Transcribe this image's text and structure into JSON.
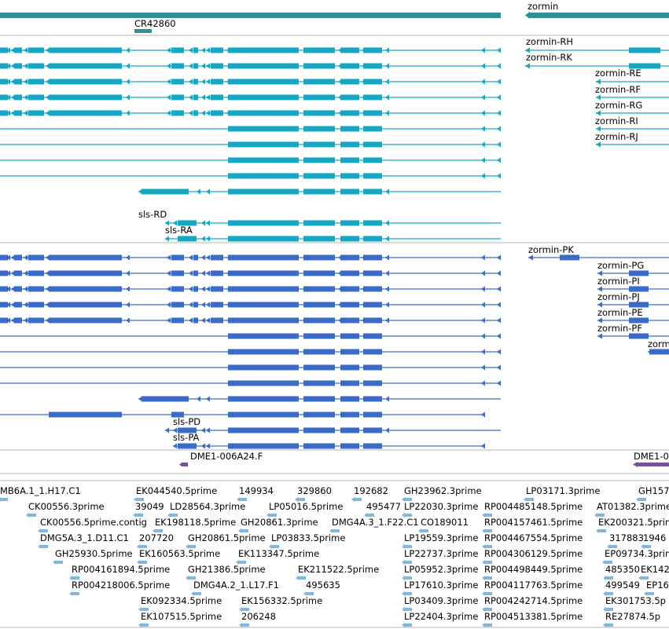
{
  "colors": {
    "gene": "#2f8f95",
    "rna": "#14a8c4",
    "protein": "#3a6bc9",
    "clone": "#7a4ea8",
    "est": "#7fb8dc",
    "divider": "#b4b4b4"
  },
  "gene_track": {
    "genes": [
      {
        "label": "CR42860"
      },
      {
        "label": "zormin"
      }
    ]
  },
  "transcript_track": {
    "labels": [
      "zormin-RH",
      "zormin-RK",
      "zormin-RE",
      "zormin-RF",
      "zormin-RG",
      "zormin-RI",
      "zormin-RJ",
      "sls-RD",
      "sls-RA"
    ]
  },
  "protein_track": {
    "labels": [
      "zormin-PK",
      "zormin-PG",
      "zormin-PI",
      "zormin-PJ",
      "zormin-PE",
      "zormin-PF",
      "zorm",
      "sls-PD",
      "sls-PA"
    ]
  },
  "clone_track": {
    "labels": [
      "DME1-006A24.F",
      "DME1-0"
    ]
  },
  "est_track": {
    "labels": [
      "MB6A.1_1.H17.C1",
      "EK044540.5prime",
      "149934",
      "329860",
      "192682",
      "GH23962.3prime",
      "LP03171.3prime",
      "GH157",
      "CK00556.3prime",
      "39049",
      "LD28564.3prime",
      "LP05016.5prime",
      "495477",
      "LP22030.3prime",
      "RP004485148.5prime",
      "AT01382.3prime",
      "CK00556.5prime.contig",
      "EK198118.5prime",
      "GH20861.3prime",
      "DMG4A.3_1.F22.C1",
      "CO189011",
      "RP004157461.5prime",
      "EK200321.5prime",
      "DMG5A.3_1.D11.C1",
      "207720",
      "GH20861.5prime",
      "LP03833.5prime",
      "LP19559.3prime",
      "RP004467554.5prime",
      "317883",
      "1946",
      "GH25930.5prime",
      "EK160563.5prime",
      "EK113347.5prime",
      "LP22737.3prime",
      "RP004306129.5prime",
      "EP09734.3prime",
      "RP004161894.5prime",
      "GH21386.5prime",
      "EK211522.5prime",
      "LP05952.3prime",
      "RP004498449.5prime",
      "485350",
      "EK142",
      "RP004218006.5prime",
      "DMG4A.2_1.L17.F1",
      "495635",
      "LP17610.3prime",
      "RP004117763.5prime",
      "499549",
      "EP16",
      "EK092334.5prime",
      "EK156332.5prime",
      "LP03409.3prime",
      "RP004242714.5prime",
      "EK301753.5p",
      "EK107515.5prime",
      "206248",
      "LP22404.3prime",
      "RP004513381.5prime",
      "RE27874.5p"
    ]
  }
}
